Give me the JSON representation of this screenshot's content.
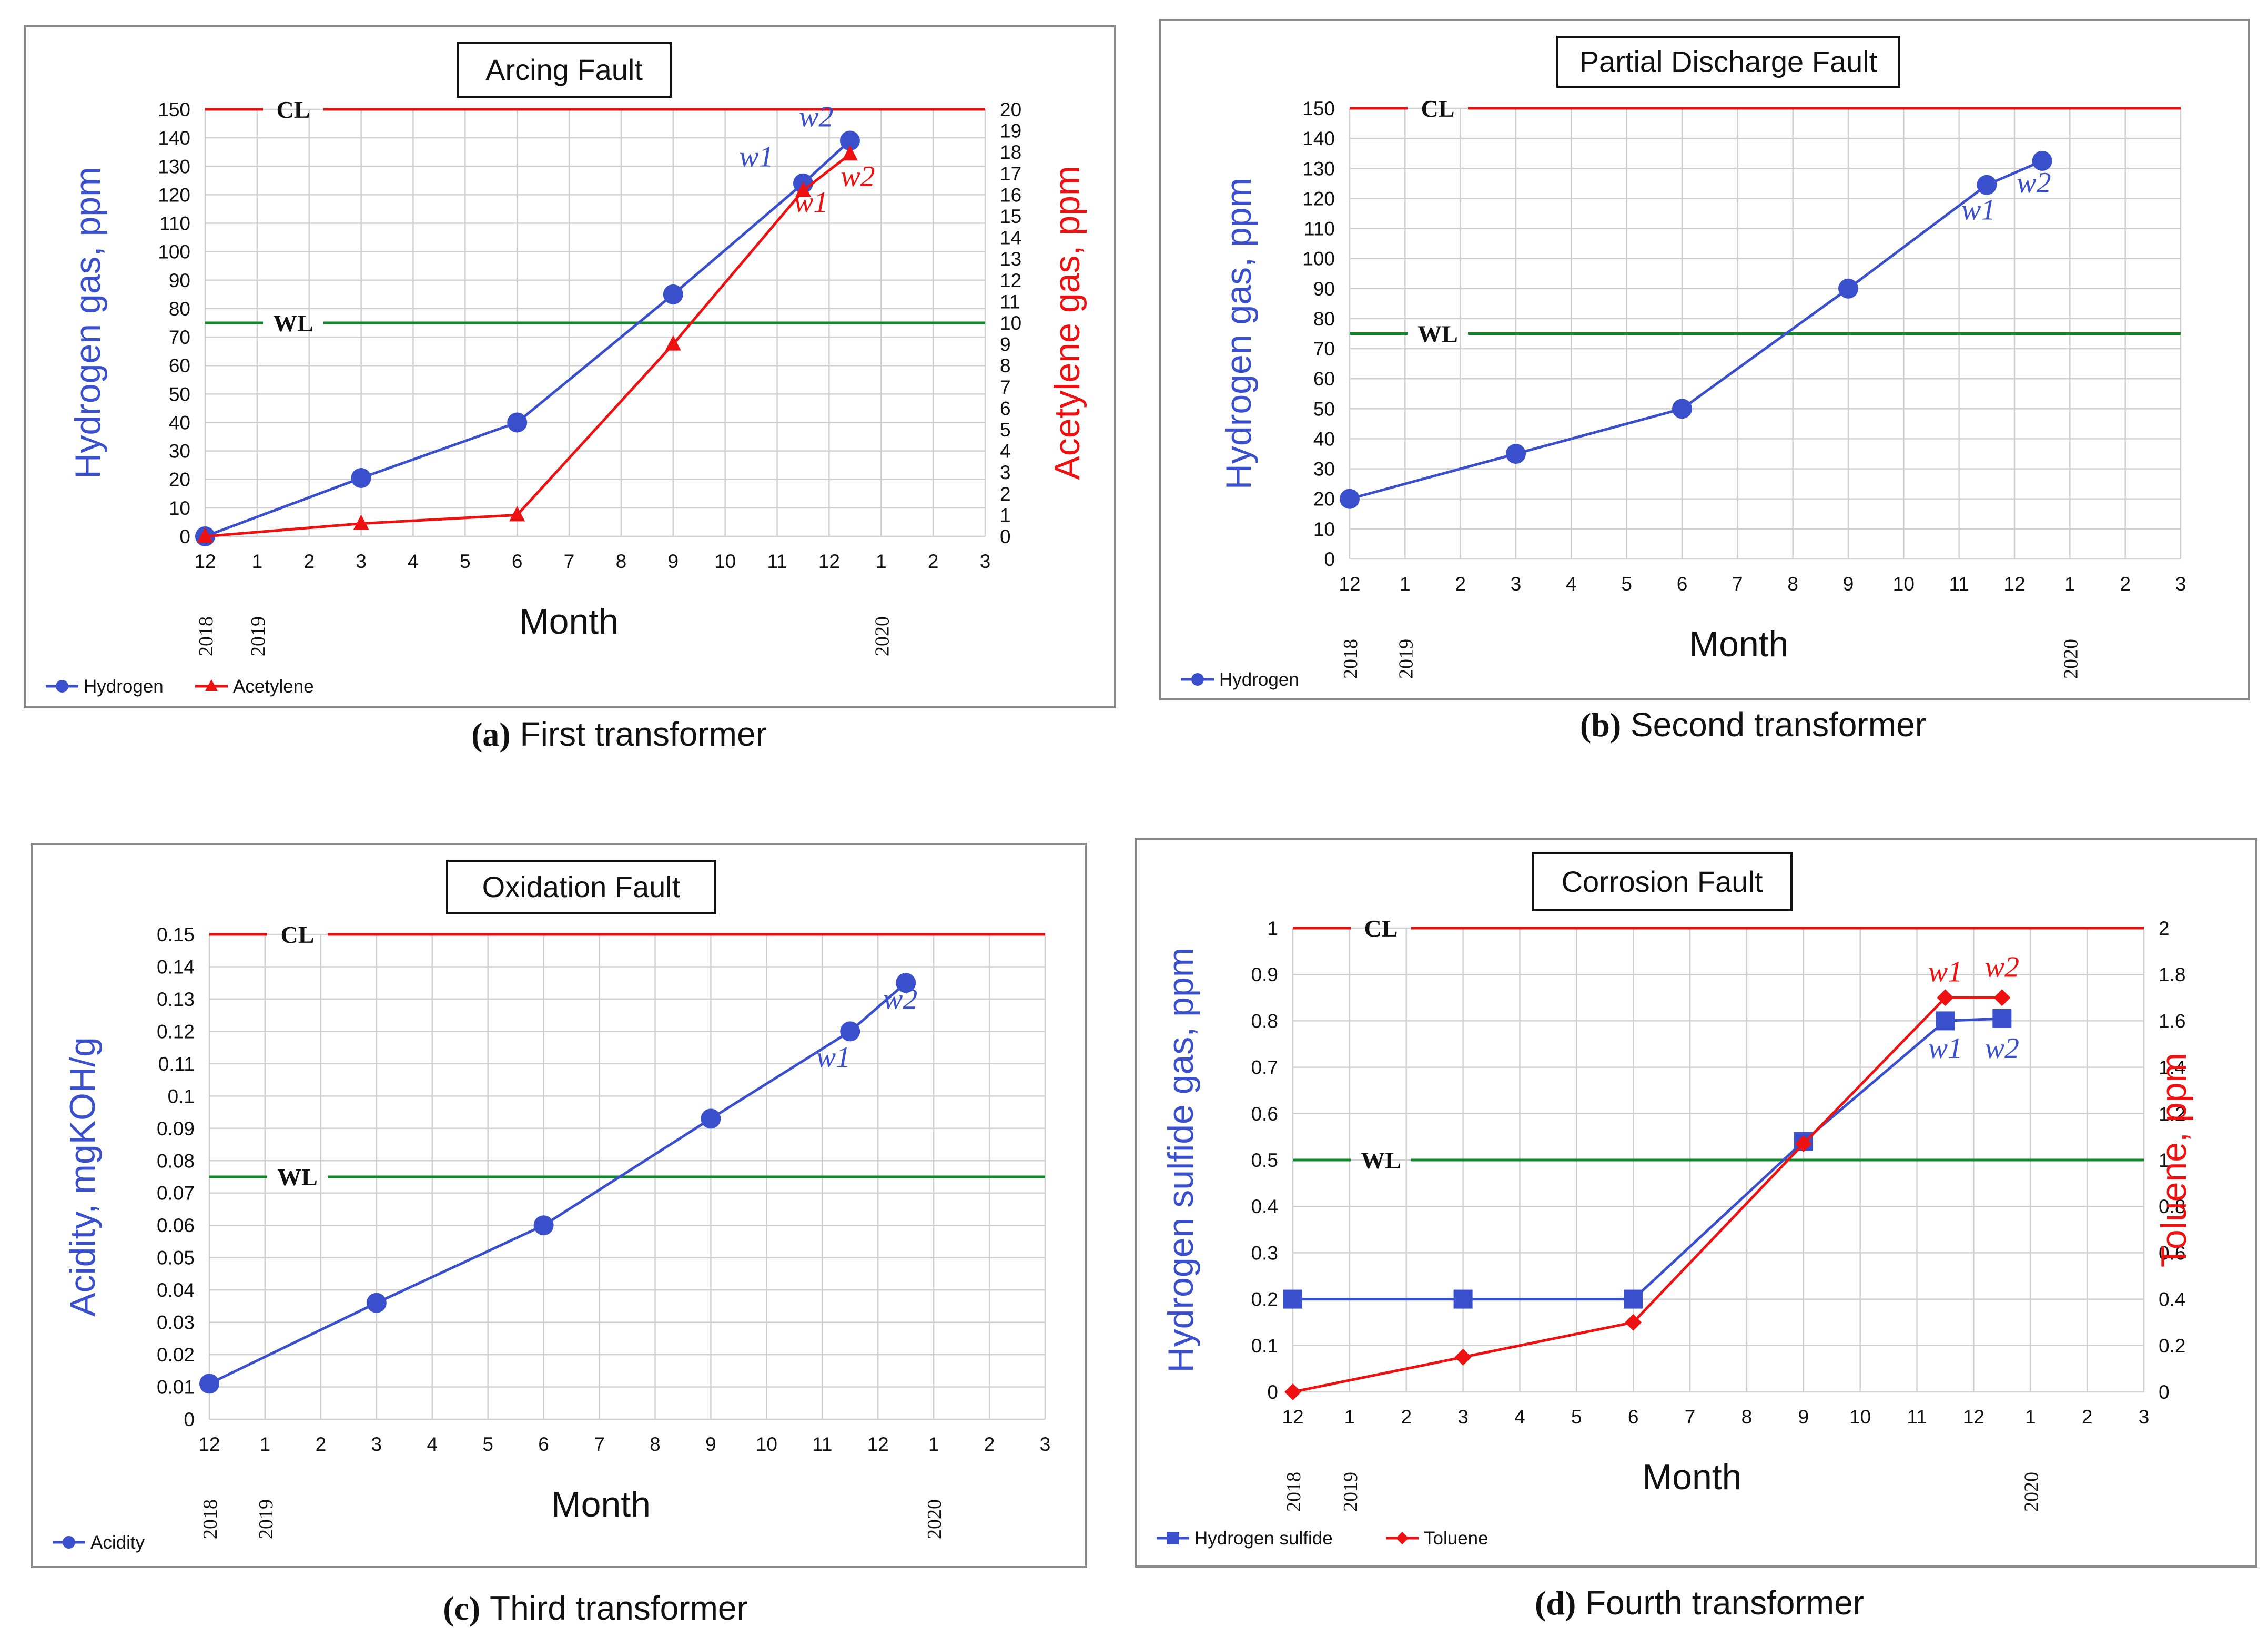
{
  "colors": {
    "blue": "#3a4fcc",
    "red": "#ee1111",
    "green": "#11882a",
    "cl_line": "#e01010",
    "grid": "#cfcfcf",
    "frame": "#8a8a8a"
  },
  "chart_data": [
    {
      "id": "a",
      "type": "line",
      "title": "Arcing Fault",
      "caption_letter": "(a)",
      "caption_text": "First transformer",
      "xlabel": "Month",
      "ylabel": "Hydrogen gas, ppm",
      "ylabel_right": "Acetylene gas, ppm",
      "x_ticks": [
        "12",
        "1",
        "2",
        "3",
        "4",
        "5",
        "6",
        "7",
        "8",
        "9",
        "10",
        "11",
        "12",
        "1",
        "2",
        "3"
      ],
      "year_labels": [
        {
          "label": "2018",
          "x": 0
        },
        {
          "label": "2019",
          "x": 1
        },
        {
          "label": "2020",
          "x": 13
        }
      ],
      "ylim": [
        0,
        150
      ],
      "ystep": 10,
      "ylim_right": [
        0,
        20
      ],
      "ystep_right": 1,
      "ref_lines": [
        {
          "label": "CL",
          "value": 150
        },
        {
          "label": "WL",
          "value": 75
        }
      ],
      "series": [
        {
          "name": "Hydrogen",
          "axis": "left",
          "marker": "circle",
          "color": "#3a4fcc",
          "points": [
            [
              0,
              0
            ],
            [
              3,
              20.5
            ],
            [
              6,
              40
            ],
            [
              9,
              85
            ],
            [
              11.5,
              124
            ],
            [
              12.4,
              139
            ]
          ]
        },
        {
          "name": "Acetylene",
          "axis": "right",
          "marker": "triangle",
          "color": "#ee1111",
          "points": [
            [
              0,
              0
            ],
            [
              3,
              0.6
            ],
            [
              6,
              1
            ],
            [
              9,
              9
            ],
            [
              11.5,
              16.2
            ],
            [
              12.4,
              17.9
            ]
          ]
        }
      ],
      "annotations": [
        {
          "text": "w1",
          "color": "#3a4fcc",
          "x": 10.6,
          "y": 130,
          "axis": "left"
        },
        {
          "text": "w2",
          "color": "#3a4fcc",
          "x": 11.75,
          "y": 144,
          "axis": "left"
        },
        {
          "text": "w1",
          "color": "#ee1111",
          "x": 11.65,
          "y": 15.2,
          "axis": "right"
        },
        {
          "text": "w2",
          "color": "#ee1111",
          "x": 12.55,
          "y": 16.4,
          "axis": "right"
        }
      ]
    },
    {
      "id": "b",
      "type": "line",
      "title": "Partial Discharge Fault",
      "caption_letter": "(b)",
      "caption_text": "Second transformer",
      "xlabel": "Month",
      "ylabel": "Hydrogen gas, ppm",
      "x_ticks": [
        "12",
        "1",
        "2",
        "3",
        "4",
        "5",
        "6",
        "7",
        "8",
        "9",
        "10",
        "11",
        "12",
        "1",
        "2",
        "3"
      ],
      "year_labels": [
        {
          "label": "2018",
          "x": 0
        },
        {
          "label": "2019",
          "x": 1
        },
        {
          "label": "2020",
          "x": 13
        }
      ],
      "ylim": [
        0,
        150
      ],
      "ystep": 10,
      "ref_lines": [
        {
          "label": "CL",
          "value": 150
        },
        {
          "label": "WL",
          "value": 75
        }
      ],
      "series": [
        {
          "name": "Hydrogen",
          "axis": "left",
          "marker": "circle",
          "color": "#3a4fcc",
          "points": [
            [
              0,
              20
            ],
            [
              3,
              35
            ],
            [
              6,
              50
            ],
            [
              9,
              90
            ],
            [
              11.5,
              124.5
            ],
            [
              12.5,
              132.5
            ]
          ]
        }
      ],
      "annotations": [
        {
          "text": "w1",
          "color": "#3a4fcc",
          "x": 11.35,
          "y": 113,
          "axis": "left"
        },
        {
          "text": "w2",
          "color": "#3a4fcc",
          "x": 12.35,
          "y": 122,
          "axis": "left"
        }
      ]
    },
    {
      "id": "c",
      "type": "line",
      "title": "Oxidation Fault",
      "caption_letter": "(c)",
      "caption_text": "Third transformer",
      "xlabel": "Month",
      "ylabel": "Acidity, mgKOH/g",
      "x_ticks": [
        "12",
        "1",
        "2",
        "3",
        "4",
        "5",
        "6",
        "7",
        "8",
        "9",
        "10",
        "11",
        "12",
        "1",
        "2",
        "3"
      ],
      "year_labels": [
        {
          "label": "2018",
          "x": 0
        },
        {
          "label": "2019",
          "x": 1
        },
        {
          "label": "2020",
          "x": 13
        }
      ],
      "ylim": [
        0,
        0.15
      ],
      "ystep": 0.01,
      "ref_lines": [
        {
          "label": "CL",
          "value": 0.15
        },
        {
          "label": "WL",
          "value": 0.075
        }
      ],
      "series": [
        {
          "name": "Acidity",
          "axis": "left",
          "marker": "circle",
          "color": "#3a4fcc",
          "points": [
            [
              0,
              0.011
            ],
            [
              3,
              0.036
            ],
            [
              6,
              0.06
            ],
            [
              9,
              0.093
            ],
            [
              11.5,
              0.12
            ],
            [
              12.5,
              0.135
            ]
          ]
        }
      ],
      "annotations": [
        {
          "text": "w1",
          "color": "#3a4fcc",
          "x": 11.2,
          "y": 0.109,
          "axis": "left"
        },
        {
          "text": "w2",
          "color": "#3a4fcc",
          "x": 12.4,
          "y": 0.127,
          "axis": "left"
        }
      ]
    },
    {
      "id": "d",
      "type": "line",
      "title": "Corrosion Fault",
      "caption_letter": "(d)",
      "caption_text": "Fourth transformer",
      "xlabel": "Month",
      "ylabel": "Hydrogen sulfide gas, ppm",
      "ylabel_right": "Toluene, ppm",
      "x_ticks": [
        "12",
        "1",
        "2",
        "3",
        "4",
        "5",
        "6",
        "7",
        "8",
        "9",
        "10",
        "11",
        "12",
        "1",
        "2",
        "3"
      ],
      "year_labels": [
        {
          "label": "2018",
          "x": 0
        },
        {
          "label": "2019",
          "x": 1
        },
        {
          "label": "2020",
          "x": 13
        }
      ],
      "ylim": [
        0,
        1
      ],
      "ystep": 0.1,
      "ylim_right": [
        0,
        2
      ],
      "ystep_right": 0.2,
      "ref_lines": [
        {
          "label": "CL",
          "value": 1
        },
        {
          "label": "WL",
          "value": 0.5
        }
      ],
      "series": [
        {
          "name": "Hydrogen sulfide",
          "axis": "left",
          "marker": "square",
          "color": "#3a4fcc",
          "points": [
            [
              0,
              0.2
            ],
            [
              3,
              0.2
            ],
            [
              6,
              0.2
            ],
            [
              9,
              0.54
            ],
            [
              11.5,
              0.8
            ],
            [
              12.5,
              0.805
            ]
          ]
        },
        {
          "name": "Toluene",
          "axis": "right",
          "marker": "diamond",
          "color": "#ee1111",
          "points": [
            [
              0,
              0
            ],
            [
              3,
              0.15
            ],
            [
              6,
              0.3
            ],
            [
              9,
              1.07
            ],
            [
              11.5,
              1.7
            ],
            [
              12.5,
              1.7
            ]
          ]
        }
      ],
      "annotations": [
        {
          "text": "w1",
          "color": "#ee1111",
          "x": 11.5,
          "y": 1.77,
          "axis": "right"
        },
        {
          "text": "w2",
          "color": "#ee1111",
          "x": 12.5,
          "y": 1.79,
          "axis": "right"
        },
        {
          "text": "w1",
          "color": "#3a4fcc",
          "x": 11.5,
          "y": 0.72,
          "axis": "left"
        },
        {
          "text": "w2",
          "color": "#3a4fcc",
          "x": 12.5,
          "y": 0.72,
          "axis": "left"
        }
      ]
    }
  ]
}
